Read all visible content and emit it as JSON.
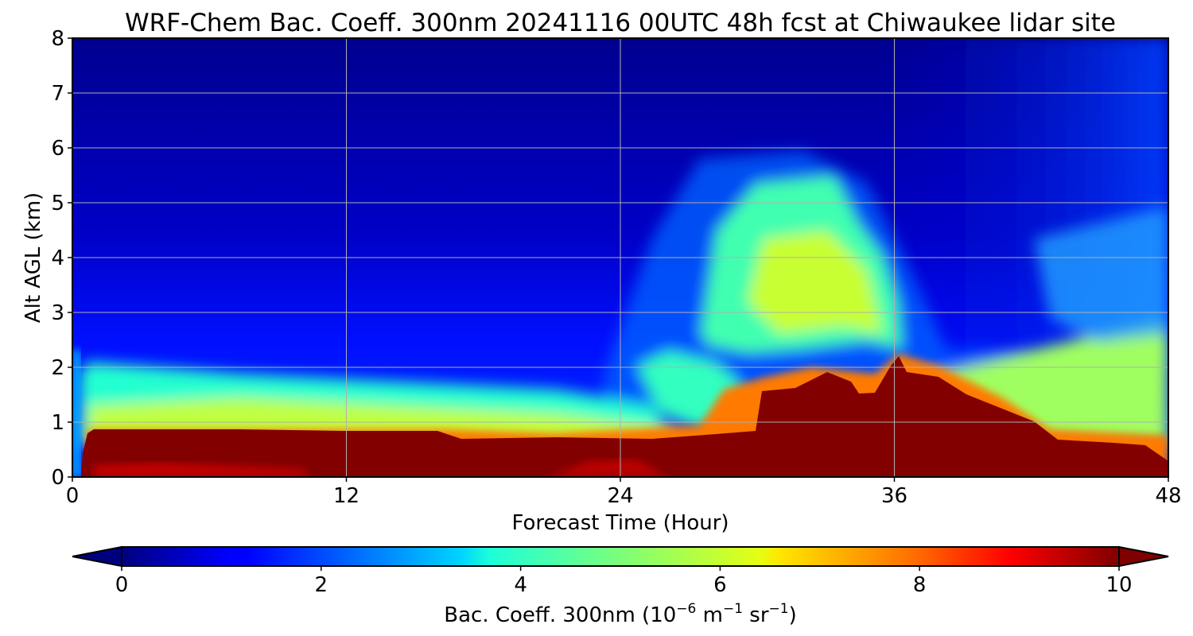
{
  "chart_data": {
    "type": "heatmap",
    "title": "WRF-Chem Bac. Coeff. 300nm  20241116 00UTC 48h fcst at Chiwaukee lidar site",
    "xlabel": "Forecast Time (Hour)",
    "ylabel": "Alt AGL (km)",
    "xlim": [
      0,
      48
    ],
    "ylim": [
      0,
      8
    ],
    "x_ticks": [
      "0",
      "12",
      "24",
      "36",
      "48"
    ],
    "y_ticks": [
      "0",
      "1",
      "2",
      "3",
      "4",
      "5",
      "6",
      "7",
      "8"
    ],
    "grid": true,
    "colorbar": {
      "label_main": "Bac. Coeff. 300nm  (10",
      "label_exp1": "−6",
      "label_mid": " m",
      "label_exp2": "−1",
      "label_end": " sr",
      "label_exp3": "−1",
      "label_close": ")",
      "range": [
        0,
        10
      ],
      "ticks": [
        "0",
        "2",
        "4",
        "6",
        "8",
        "10"
      ],
      "extend": "both",
      "colormap": "jet"
    },
    "features": [
      {
        "region": "surface-layer",
        "x": [
          0.8,
          48
        ],
        "y": [
          0,
          0.85
        ],
        "value": 10
      },
      {
        "region": "aerosol-layer",
        "x": [
          0.5,
          48
        ],
        "y": [
          0.85,
          1.6
        ],
        "value": 5.5
      },
      {
        "region": "elevated-layer",
        "x": [
          28,
          36
        ],
        "y": [
          2.4,
          5.5
        ],
        "value": 4.5
      },
      {
        "region": "free-troposphere",
        "x": [
          0,
          48
        ],
        "y": [
          2,
          8
        ],
        "value": 1
      }
    ]
  }
}
